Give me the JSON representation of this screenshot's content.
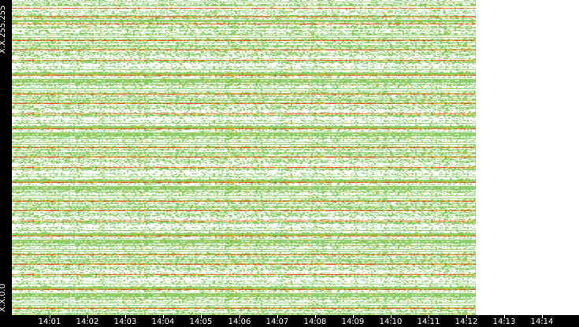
{
  "chart_data": {
    "type": "heatmap",
    "title": "",
    "y_labels": {
      "top": "X.X.255.255",
      "bottom": "X.X.0.0"
    },
    "x_ticks": [
      "14:01",
      "14:02",
      "14:03",
      "14:04",
      "14:05",
      "14:06",
      "14:07",
      "14:08",
      "14:09",
      "14:10",
      "14:11",
      "14:12",
      "14:13",
      "14:14"
    ],
    "data_end_time": "14:12",
    "colors": {
      "background": "#ffffff",
      "low": "#8fcf6f",
      "mid": "#6cbf2a",
      "high": "#f5a800",
      "max": "#ff2a00",
      "axis": "#000000",
      "text": "#ffffff"
    }
  }
}
